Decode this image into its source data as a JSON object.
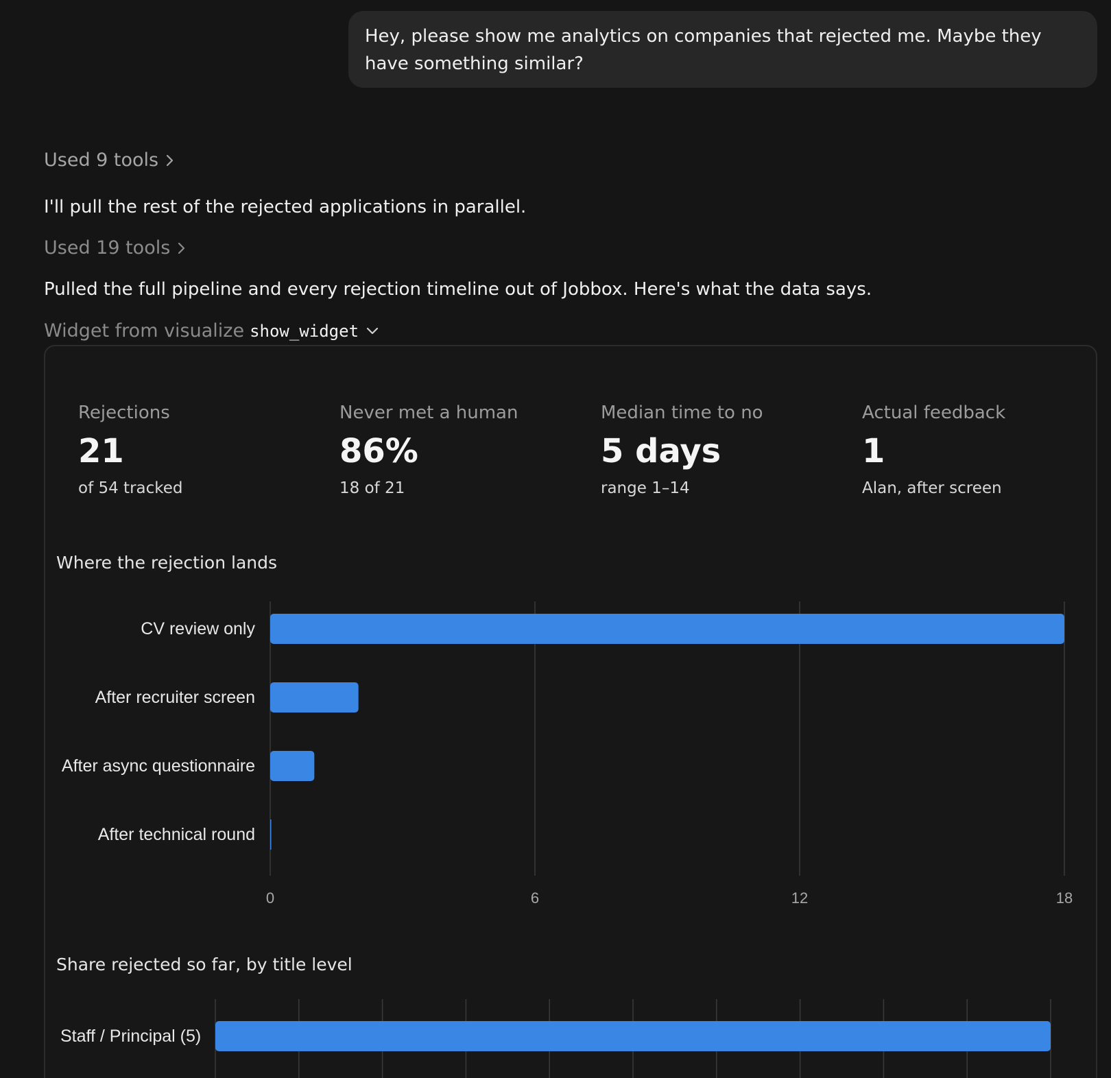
{
  "user_message": "Hey, please show me analytics on companies that rejected me. Maybe they have something similar?",
  "tools_first": "Used 9 tools",
  "assistant_text_1": "I'll pull the rest of the rejected applications in parallel.",
  "tools_second": "Used 19 tools",
  "assistant_text_2": "Pulled the full pipeline and every rejection timeline out of Jobbox. Here's what the data says.",
  "widget_label": {
    "prefix": "Widget from visualize",
    "code": "show_widget"
  },
  "metrics": [
    {
      "label": "Rejections",
      "value": "21",
      "sub": "of 54 tracked"
    },
    {
      "label": "Never met a human",
      "value": "86%",
      "sub": "18 of 21"
    },
    {
      "label": "Median time to no",
      "value": "5 days",
      "sub": "range 1–14"
    },
    {
      "label": "Actual feedback",
      "value": "1",
      "sub": "Alan, after screen"
    }
  ],
  "colors": {
    "bar": "#3a86e5",
    "grid": "#3a3a3a",
    "background": "#151515"
  },
  "chart_data": [
    {
      "type": "bar",
      "orientation": "horizontal",
      "title": "Where the rejection lands",
      "categories": [
        "CV review only",
        "After recruiter screen",
        "After async questionnaire",
        "After technical round"
      ],
      "values": [
        18,
        2,
        1,
        0
      ],
      "xlim": [
        0,
        18
      ],
      "xticks": [
        "0",
        "6",
        "12",
        "18"
      ],
      "grid": true
    },
    {
      "type": "bar",
      "orientation": "horizontal",
      "title": "Share rejected so far, by title level",
      "categories": [
        "Staff / Principal (5)"
      ],
      "values": [
        100
      ],
      "xlim": [
        0,
        100
      ],
      "grid": true
    }
  ]
}
